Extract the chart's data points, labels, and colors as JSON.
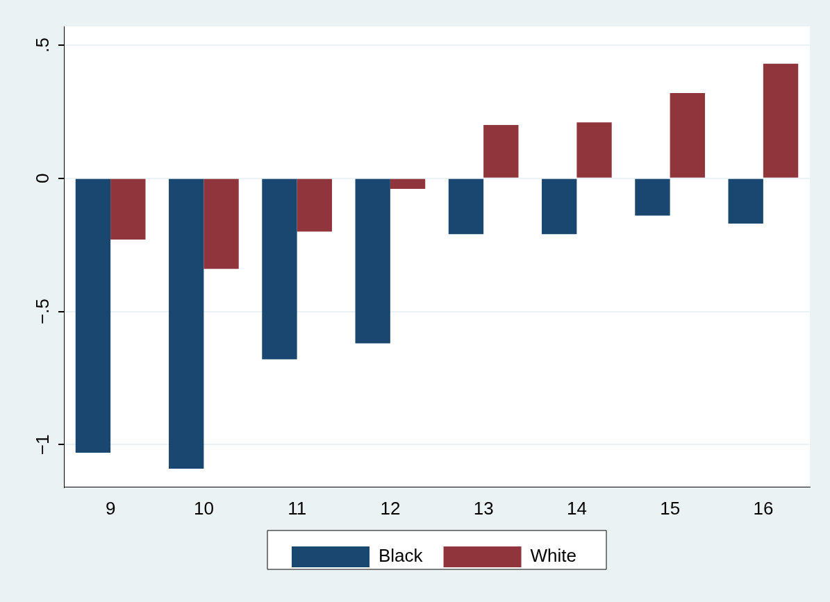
{
  "chart_data": {
    "type": "bar",
    "categories": [
      "9",
      "10",
      "11",
      "12",
      "13",
      "14",
      "15",
      "16"
    ],
    "series": [
      {
        "name": "Black",
        "color": "#1a476f",
        "values": [
          -1.03,
          -1.09,
          -0.68,
          -0.62,
          -0.21,
          -0.21,
          -0.14,
          -0.17
        ]
      },
      {
        "name": "White",
        "color": "#90353b",
        "values": [
          -0.23,
          -0.34,
          -0.2,
          -0.04,
          0.2,
          0.21,
          0.32,
          0.43
        ]
      }
    ],
    "ylim": [
      -1.16,
      0.57
    ],
    "yticks": [
      {
        "value": -1,
        "label": "−1"
      },
      {
        "value": -0.5,
        "label": "−.5"
      },
      0,
      {
        "value": 0.5,
        "label": ".5"
      }
    ],
    "grid": "y",
    "legend": "bottom"
  }
}
